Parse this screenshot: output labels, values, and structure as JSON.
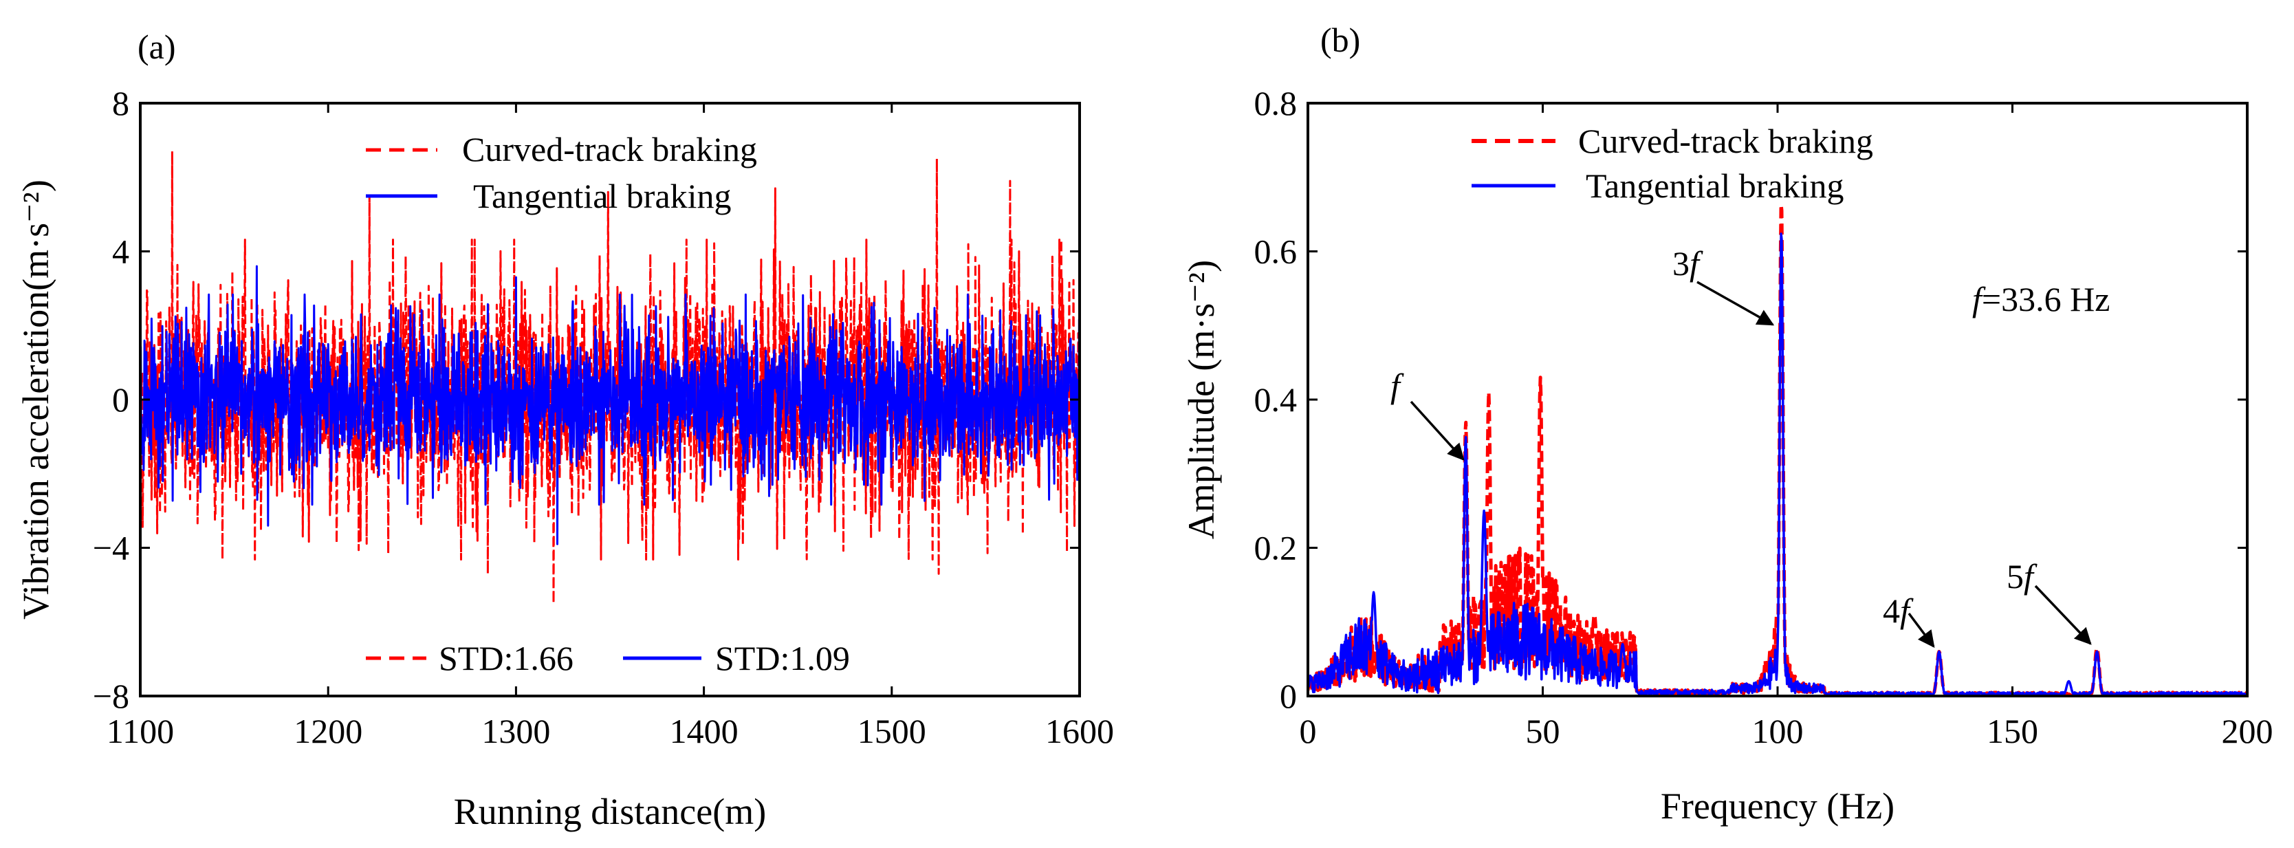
{
  "chart_data": [
    {
      "panel": "(a)",
      "type": "line",
      "title": "",
      "xlabel": "Running distance(m)",
      "ylabel": "Vibration acceleration(m·s⁻²)",
      "xlim": [
        1100,
        1600
      ],
      "ylim": [
        -8,
        8
      ],
      "x_ticks": [
        1100,
        1200,
        1300,
        1400,
        1500,
        1600
      ],
      "y_ticks": [
        -8,
        -4,
        0,
        4,
        8
      ],
      "x_tick_labels": [
        "1100",
        "1200",
        "1300",
        "1400",
        "1500",
        "1600"
      ],
      "y_tick_labels": [
        "−8",
        "−4",
        "0",
        "4",
        "8"
      ],
      "grid": false,
      "legend_position": "top",
      "series": [
        {
          "name": "Curved-track braking",
          "color": "#ff0000",
          "style": "dashed",
          "std": 1.66,
          "std_label": "STD:1.66",
          "summary": "dense random vibration signal, amplitude approx ±3 m/s², extremes 6.7 (x≈1117) and −5.5 (x≈1320)",
          "peaks": [
            {
              "x": 1117,
              "y": 6.7
            },
            {
              "x": 1222,
              "y": 5.5
            },
            {
              "x": 1349,
              "y": 5.6
            },
            {
              "x": 1438,
              "y": 5.7
            },
            {
              "x": 1524,
              "y": 6.5
            },
            {
              "x": 1563,
              "y": 5.9
            },
            {
              "x": 1285,
              "y": -4.7
            },
            {
              "x": 1320,
              "y": -5.5
            },
            {
              "x": 1525,
              "y": -4.7
            },
            {
              "x": 1562,
              "y": -3.3
            }
          ]
        },
        {
          "name": "Tangential braking",
          "color": "#0000ff",
          "style": "solid",
          "std": 1.09,
          "std_label": "STD:1.09",
          "summary": "dense random vibration signal, amplitude approx ±2 m/s², extremes 3.6 (x≈1162) and −3.9 (x≈1322)",
          "peaks": [
            {
              "x": 1162,
              "y": 3.6
            },
            {
              "x": 1300,
              "y": 3.3
            },
            {
              "x": 1168,
              "y": -3.4
            },
            {
              "x": 1322,
              "y": -3.9
            }
          ]
        }
      ]
    },
    {
      "panel": "(b)",
      "type": "line",
      "title": "",
      "xlabel": "Frequency (Hz)",
      "ylabel": "Amplitude (m·s⁻²)",
      "xlim": [
        0,
        200
      ],
      "ylim": [
        0,
        0.8
      ],
      "x_ticks": [
        0,
        50,
        100,
        150,
        200
      ],
      "y_ticks": [
        0,
        0.2,
        0.4,
        0.6,
        0.8
      ],
      "x_tick_labels": [
        "0",
        "50",
        "100",
        "150",
        "200"
      ],
      "y_tick_labels": [
        "0",
        "0.2",
        "0.4",
        "0.6",
        "0.8"
      ],
      "grid": false,
      "legend_position": "top-left",
      "series": [
        {
          "name": "Curved-track braking",
          "color": "#ff0000",
          "style": "dashed",
          "peaks": [
            {
              "x": 33.6,
              "y": 0.37
            },
            {
              "x": 38.5,
              "y": 0.41
            },
            {
              "x": 49.5,
              "y": 0.43
            },
            {
              "x": 61,
              "y": 0.11
            },
            {
              "x": 100.8,
              "y": 0.67
            },
            {
              "x": 134.4,
              "y": 0.06
            },
            {
              "x": 168,
              "y": 0.065
            }
          ]
        },
        {
          "name": "Tangential braking",
          "color": "#0000ff",
          "style": "solid",
          "peaks": [
            {
              "x": 14,
              "y": 0.14
            },
            {
              "x": 33.6,
              "y": 0.35
            },
            {
              "x": 37.5,
              "y": 0.25
            },
            {
              "x": 67,
              "y": 0.07
            },
            {
              "x": 100.8,
              "y": 0.63
            },
            {
              "x": 134.4,
              "y": 0.06
            },
            {
              "x": 162,
              "y": 0.02
            },
            {
              "x": 168,
              "y": 0.06
            }
          ]
        }
      ],
      "annotations": [
        {
          "id": "f",
          "base": "f",
          "prefix": "",
          "x": 33.6,
          "y": 0.35
        },
        {
          "id": "3f",
          "base": "f",
          "prefix": "3",
          "x": 100.8,
          "y": 0.5
        },
        {
          "id": "4f",
          "base": "f",
          "prefix": "4",
          "x": 134.4,
          "y": 0.06
        },
        {
          "id": "5f",
          "base": "f",
          "prefix": "5",
          "x": 168,
          "y": 0.065
        }
      ],
      "note": {
        "symbol": "f",
        "text": "=33.6 Hz"
      }
    }
  ]
}
